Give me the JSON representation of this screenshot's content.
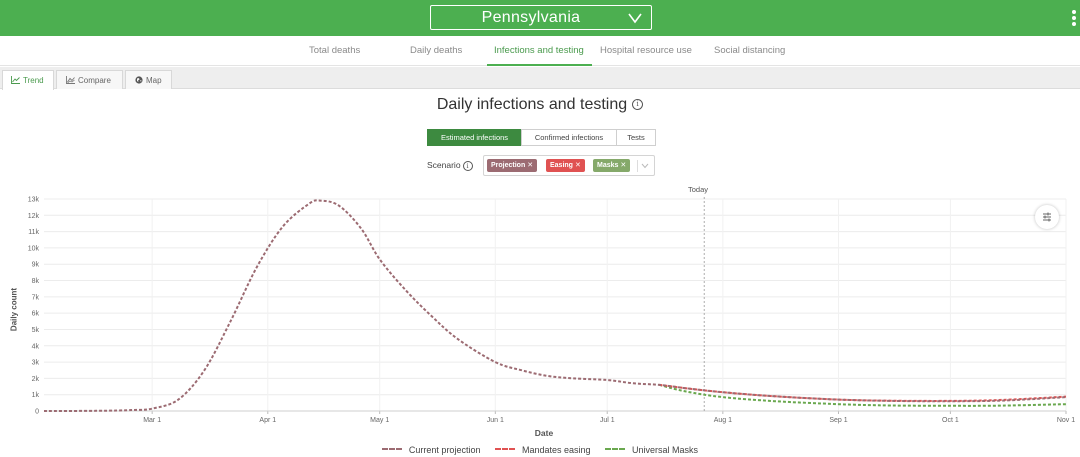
{
  "header": {
    "location": "Pennsylvania",
    "colors": {
      "bar": "#4caf50"
    }
  },
  "nav": {
    "tabs": [
      {
        "label": "Total deaths"
      },
      {
        "label": "Daily deaths"
      },
      {
        "label": "Infections and testing",
        "active": true
      },
      {
        "label": "Hospital resource use"
      },
      {
        "label": "Social distancing"
      }
    ]
  },
  "view_tabs": [
    {
      "label": "Trend",
      "icon": "line-chart-icon",
      "active": true
    },
    {
      "label": "Compare",
      "icon": "compare-chart-icon"
    },
    {
      "label": "Map",
      "icon": "globe-icon"
    }
  ],
  "main": {
    "title": "Daily infections and testing",
    "metric_toggle": [
      {
        "label": "Estimated infections",
        "active": true
      },
      {
        "label": "Confirmed infections"
      },
      {
        "label": "Tests"
      }
    ],
    "scenario": {
      "label": "Scenario",
      "chips": [
        {
          "label": "Projection",
          "color": "#9c6b72"
        },
        {
          "label": "Easing",
          "color": "#e05252"
        },
        {
          "label": "Masks",
          "color": "#85a96a"
        }
      ]
    }
  },
  "chart_data": {
    "type": "line",
    "xlabel": "Date",
    "ylabel": "Daily count",
    "ylim": [
      0,
      13000
    ],
    "yticks": [
      0,
      1000,
      2000,
      3000,
      4000,
      5000,
      6000,
      7000,
      8000,
      9000,
      10000,
      11000,
      12000,
      13000
    ],
    "ytick_labels": [
      "0",
      "1k",
      "2k",
      "3k",
      "4k",
      "5k",
      "6k",
      "7k",
      "8k",
      "9k",
      "10k",
      "11k",
      "12k",
      "13k"
    ],
    "xlim": [
      "2020-02-01",
      "2020-11-01"
    ],
    "xticks": [
      "2020-03-01",
      "2020-04-01",
      "2020-05-01",
      "2020-06-01",
      "2020-07-01",
      "2020-08-01",
      "2020-09-01",
      "2020-10-01",
      "2020-11-01"
    ],
    "xtick_labels": [
      "Mar 1",
      "Apr 1",
      "May 1",
      "Jun 1",
      "Jul 1",
      "Aug 1",
      "Sep 1",
      "Oct 1",
      "Nov 1"
    ],
    "today": {
      "label": "Today",
      "date": "2020-07-27"
    },
    "grid": true,
    "legend_position": "bottom",
    "series": [
      {
        "name": "Current projection",
        "color": "#9c6b72",
        "points": [
          [
            "2020-02-01",
            0
          ],
          [
            "2020-02-15",
            10
          ],
          [
            "2020-02-25",
            60
          ],
          [
            "2020-03-01",
            150
          ],
          [
            "2020-03-08",
            700
          ],
          [
            "2020-03-15",
            2500
          ],
          [
            "2020-03-22",
            5500
          ],
          [
            "2020-03-29",
            8800
          ],
          [
            "2020-04-05",
            11300
          ],
          [
            "2020-04-12",
            12700
          ],
          [
            "2020-04-15",
            12900
          ],
          [
            "2020-04-20",
            12600
          ],
          [
            "2020-04-26",
            11200
          ],
          [
            "2020-05-01",
            9300
          ],
          [
            "2020-05-08",
            7400
          ],
          [
            "2020-05-15",
            5800
          ],
          [
            "2020-05-22",
            4400
          ],
          [
            "2020-06-01",
            3000
          ],
          [
            "2020-06-08",
            2500
          ],
          [
            "2020-06-15",
            2150
          ],
          [
            "2020-06-22",
            2000
          ],
          [
            "2020-07-01",
            1900
          ],
          [
            "2020-07-08",
            1700
          ],
          [
            "2020-07-15",
            1600
          ],
          [
            "2020-07-22",
            1400
          ],
          [
            "2020-08-01",
            1150
          ],
          [
            "2020-08-15",
            900
          ],
          [
            "2020-09-01",
            700
          ],
          [
            "2020-09-15",
            620
          ],
          [
            "2020-10-01",
            600
          ],
          [
            "2020-10-15",
            640
          ],
          [
            "2020-11-01",
            850
          ]
        ]
      },
      {
        "name": "Mandates easing",
        "color": "#e05252",
        "points": [
          [
            "2020-07-15",
            1600
          ],
          [
            "2020-07-22",
            1400
          ],
          [
            "2020-08-01",
            1150
          ],
          [
            "2020-08-15",
            900
          ],
          [
            "2020-09-01",
            700
          ],
          [
            "2020-09-15",
            630
          ],
          [
            "2020-10-01",
            620
          ],
          [
            "2020-10-15",
            680
          ],
          [
            "2020-11-01",
            880
          ]
        ]
      },
      {
        "name": "Universal Masks",
        "color": "#6aa84f",
        "points": [
          [
            "2020-07-15",
            1600
          ],
          [
            "2020-07-22",
            1200
          ],
          [
            "2020-08-01",
            850
          ],
          [
            "2020-08-15",
            600
          ],
          [
            "2020-09-01",
            420
          ],
          [
            "2020-09-15",
            340
          ],
          [
            "2020-10-01",
            320
          ],
          [
            "2020-10-15",
            330
          ],
          [
            "2020-11-01",
            420
          ]
        ]
      }
    ]
  }
}
